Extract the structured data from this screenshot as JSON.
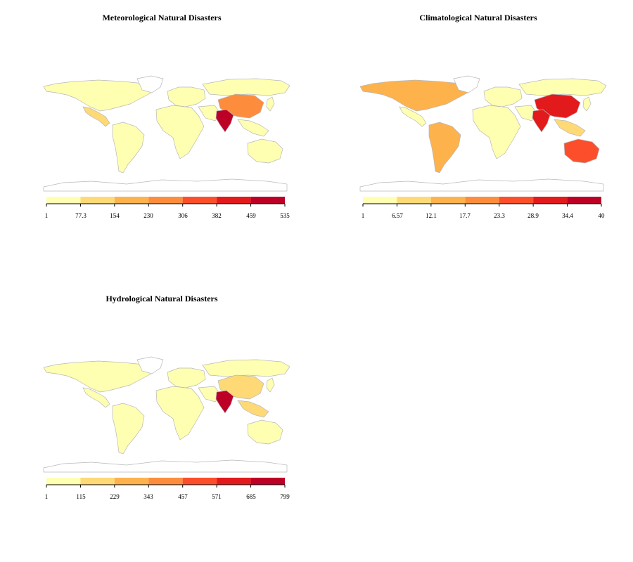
{
  "palette": [
    "#ffffb2",
    "#fed976",
    "#feb24c",
    "#fd8d3c",
    "#fc4e2a",
    "#e31a1c",
    "#bd0026"
  ],
  "outline_color": "#b8b8b8",
  "maps": [
    {
      "title": "Meteorological Natural Disasters",
      "ticks": [
        "1",
        "77.3",
        "154",
        "230",
        "306",
        "382",
        "459",
        "535"
      ],
      "regions": {
        "north_america": 0,
        "greenland": -1,
        "mexico_central_america": 1,
        "south_america": 0,
        "europe": 0,
        "africa": 0,
        "middle_east": 0,
        "russia": 0,
        "china": 3,
        "india": 6,
        "southeast_asia": 0,
        "japan": 0,
        "australia": 0
      }
    },
    {
      "title": "Climatological Natural Disasters",
      "ticks": [
        "1",
        "6.57",
        "12.1",
        "17.7",
        "23.3",
        "28.9",
        "34.4",
        "40"
      ],
      "regions": {
        "north_america": 2,
        "greenland": -1,
        "mexico_central_america": 0,
        "south_america": 2,
        "europe": 0,
        "africa": 0,
        "middle_east": 0,
        "russia": 0,
        "china": 5,
        "india": 5,
        "southeast_asia": 1,
        "japan": 0,
        "australia": 4
      }
    },
    {
      "title": "Hydrological Natural Disasters",
      "ticks": [
        "1",
        "115",
        "229",
        "343",
        "457",
        "571",
        "685",
        "799"
      ],
      "regions": {
        "north_america": 0,
        "greenland": -1,
        "mexico_central_america": 0,
        "south_america": 0,
        "europe": 0,
        "africa": 0,
        "middle_east": 0,
        "russia": 0,
        "china": 1,
        "india": 6,
        "southeast_asia": 1,
        "japan": 0,
        "australia": 0
      }
    }
  ]
}
